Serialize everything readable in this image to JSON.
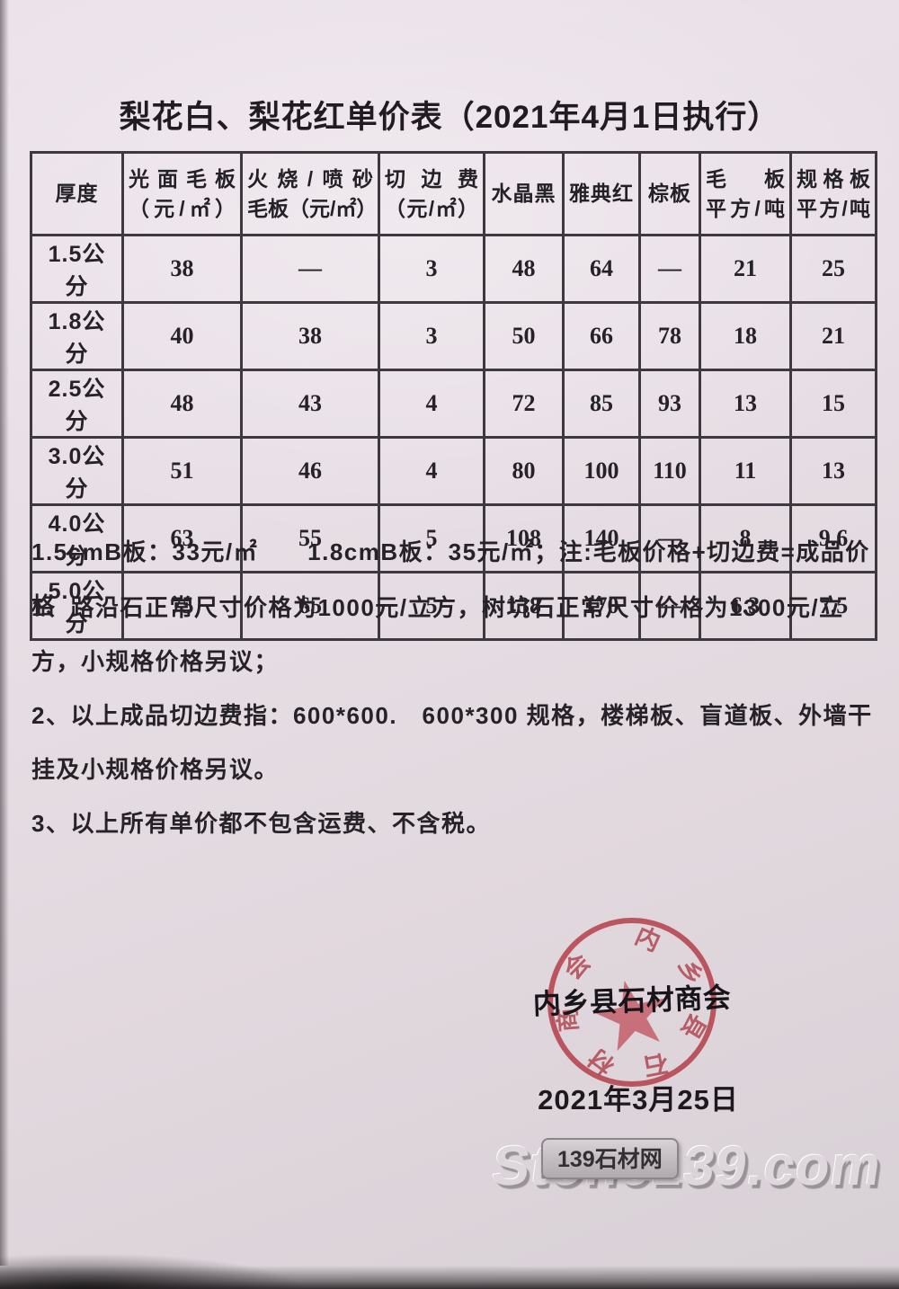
{
  "title": "梨花白、梨花红单价表（2021年4月1日执行）",
  "table": {
    "columns": [
      {
        "lines": [
          "厚度"
        ]
      },
      {
        "lines": [
          "光面毛板",
          "（元/㎡）"
        ]
      },
      {
        "lines": [
          "火烧/喷砂",
          "毛板（元/㎡）"
        ]
      },
      {
        "lines": [
          "切边费",
          "（元/㎡）"
        ]
      },
      {
        "lines": [
          "水晶黑"
        ]
      },
      {
        "lines": [
          "雅典红"
        ]
      },
      {
        "lines": [
          "棕板"
        ]
      },
      {
        "lines": [
          "毛板",
          "平方/吨"
        ]
      },
      {
        "lines": [
          "规格板",
          "平方/吨"
        ]
      }
    ],
    "rows": [
      {
        "cells": [
          "1.5公分",
          "38",
          "—",
          "3",
          "48",
          "64",
          "—",
          "21",
          "25"
        ]
      },
      {
        "cells": [
          "1.8公分",
          "40",
          "38",
          "3",
          "50",
          "66",
          "78",
          "18",
          "21"
        ]
      },
      {
        "cells": [
          "2.5公分",
          "48",
          "43",
          "4",
          "72",
          "85",
          "93",
          "13",
          "15"
        ]
      },
      {
        "cells": [
          "3.0公分",
          "51",
          "46",
          "4",
          "80",
          "100",
          "110",
          "11",
          "13"
        ]
      },
      {
        "cells": [
          "4.0公分",
          "63",
          "55",
          "5",
          "108",
          "140",
          "—",
          "8",
          "9.6"
        ]
      },
      {
        "cells": [
          "5.0公分",
          "75",
          "65",
          "5",
          "138",
          "170",
          "—",
          "6.3",
          "7.5"
        ]
      }
    ]
  },
  "notes": {
    "b_board": "1.5cmB板：33元/㎡　　1.8cmB板：35元/㎡；注:毛板价格+切边费=成品价格",
    "items": [
      "1、路沿石正常尺寸价格为1000元/立方，树坑石正常尺寸价格为1300元/立方，小规格价格另议；",
      "2、以上成品切边费指：600*600.　600*300 规格，楼梯板、盲道板、外墙干挂及小规格价格另议。",
      "3、以上所有单价都不包含运费、不含税。"
    ]
  },
  "stamp": {
    "org": "内乡县石材商会",
    "ring_text": "内乡县石材商会",
    "color": "#b5434e"
  },
  "date": "2021年3月25日",
  "watermark": {
    "badge": "139石材网",
    "text": "Stone139.com"
  },
  "colors": {
    "paper": "#e8dfe6",
    "ink": "#262228",
    "table_line": "#3e3940",
    "stamp_red": "#b5434e"
  }
}
